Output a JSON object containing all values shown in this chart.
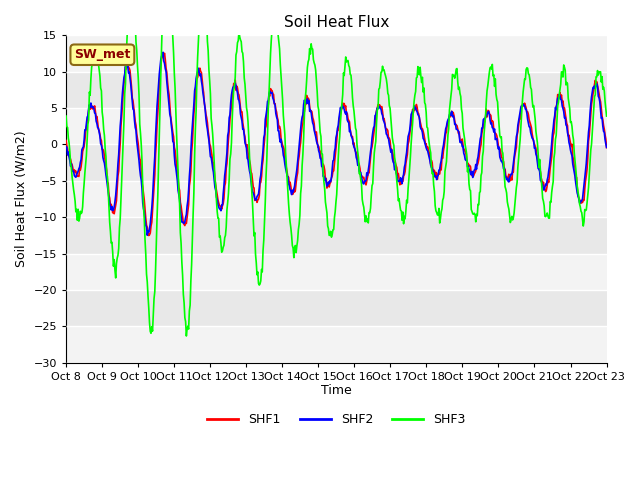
{
  "title": "Soil Heat Flux",
  "xlabel": "Time",
  "ylabel": "Soil Heat Flux (W/m2)",
  "ylim": [
    -30,
    15
  ],
  "yticks": [
    -30,
    -25,
    -20,
    -15,
    -10,
    -5,
    0,
    5,
    10,
    15
  ],
  "xtick_labels": [
    "Oct 8",
    "Oct 9",
    "Oct 10",
    "Oct 11",
    "Oct 12",
    "Oct 13",
    "Oct 14",
    "Oct 15",
    "Oct 16",
    "Oct 17",
    "Oct 18",
    "Oct 19",
    "Oct 20",
    "Oct 21",
    "Oct 22",
    "Oct 23"
  ],
  "annotation_text": "SW_met",
  "annotation_bg": "#FFFF99",
  "annotation_border": "#8B6914",
  "legend_entries": [
    "SHF1",
    "SHF2",
    "SHF3"
  ],
  "line_colors": [
    "red",
    "blue",
    "lime"
  ],
  "plot_bg": "#E8E8E8",
  "white_band_color": "#F5F5F5",
  "grid_color": "white",
  "n_days": 15,
  "n_points_per_day": 48,
  "shf3_amplitudes": [
    18,
    26,
    25,
    20,
    14,
    12,
    10,
    10,
    10,
    10,
    10,
    10,
    10,
    10,
    10
  ],
  "shf12_amplitudes": [
    6,
    8,
    8,
    7,
    6,
    6,
    5,
    5,
    5,
    5,
    5,
    5,
    6,
    7,
    8
  ]
}
